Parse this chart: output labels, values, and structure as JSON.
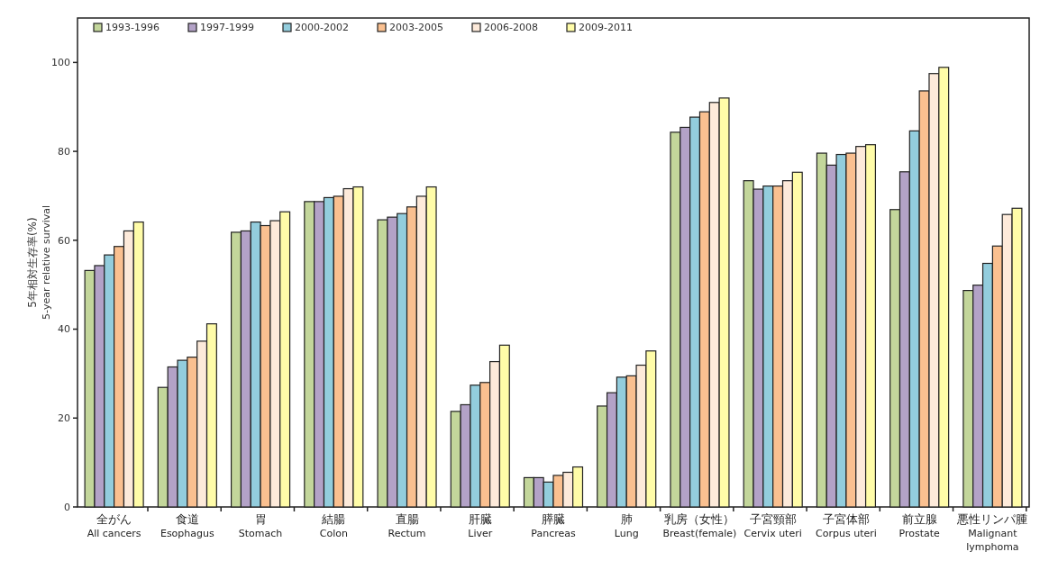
{
  "chart_data": {
    "type": "bar",
    "ylabel": "5年相対生存率(%)\n5-year relative survival",
    "categories": [
      "全がん\nAll cancers",
      "食道\nEsophagus",
      "胃\nStomach",
      "結腸\nColon",
      "直腸\nRectum",
      "肝臓\nLiver",
      "膵臓\nPancreas",
      "肺\nLung",
      "乳房（女性）\nBreast(female)",
      "子宮頸部\nCervix uteri",
      "子宮体部\nCorpus uteri",
      "前立腺\nProstate",
      "悪性リンパ腫\nMalignant\nlymphoma"
    ],
    "series": [
      {
        "name": "1993-1996",
        "color": "#c3d69b",
        "values": [
          53.2,
          26.9,
          61.8,
          68.7,
          64.6,
          21.5,
          6.6,
          22.7,
          84.3,
          73.4,
          79.6,
          66.9,
          48.7
        ]
      },
      {
        "name": "1997-1999",
        "color": "#b3a2c7",
        "values": [
          54.3,
          31.5,
          62.1,
          68.7,
          65.2,
          23.0,
          6.6,
          25.7,
          85.4,
          71.5,
          76.9,
          75.4,
          49.9
        ]
      },
      {
        "name": "2000-2002",
        "color": "#93cddd",
        "values": [
          56.7,
          33.0,
          64.1,
          69.6,
          66.0,
          27.4,
          5.6,
          29.2,
          87.7,
          72.2,
          79.3,
          84.6,
          54.8
        ]
      },
      {
        "name": "2003-2005",
        "color": "#fac090",
        "values": [
          58.6,
          33.7,
          63.3,
          69.9,
          67.5,
          28.0,
          7.1,
          29.5,
          88.9,
          72.2,
          79.6,
          93.6,
          58.7
        ]
      },
      {
        "name": "2006-2008",
        "color": "#fdeada",
        "values": [
          62.1,
          37.3,
          64.4,
          71.6,
          69.9,
          32.7,
          7.8,
          31.9,
          91.0,
          73.4,
          81.1,
          97.5,
          65.8
        ]
      },
      {
        "name": "2009-2011",
        "color": "#fffca8",
        "values": [
          64.1,
          41.2,
          66.4,
          72.0,
          72.0,
          36.4,
          9.0,
          35.1,
          92.0,
          75.3,
          81.5,
          98.9,
          67.2
        ]
      }
    ],
    "ylim": [
      0,
      110
    ],
    "yticks": [
      0,
      20,
      40,
      60,
      80,
      100
    ],
    "grid": false,
    "legend": "top left"
  }
}
